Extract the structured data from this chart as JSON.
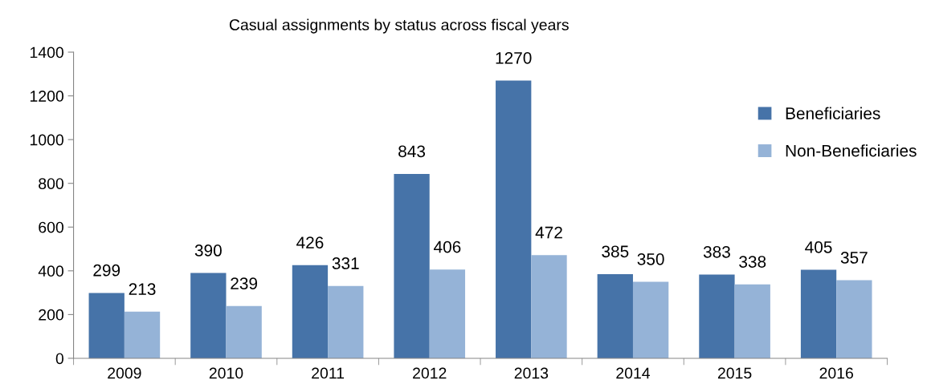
{
  "chart_data": {
    "type": "bar",
    "title": "Casual assignments by status across fiscal years",
    "categories": [
      "2009",
      "2010",
      "2011",
      "2012",
      "2013",
      "2014",
      "2015",
      "2016"
    ],
    "series": [
      {
        "name": "Beneficiaries",
        "color": "#4673a8",
        "values": [
          299,
          390,
          426,
          843,
          1270,
          385,
          383,
          405
        ]
      },
      {
        "name": "Non-Beneficiaries",
        "color": "#95b3d7",
        "values": [
          213,
          239,
          331,
          406,
          472,
          350,
          338,
          357
        ]
      }
    ],
    "ylim": [
      0,
      1400
    ],
    "yticks": [
      0,
      200,
      400,
      600,
      800,
      1000,
      1200,
      1400
    ],
    "data_labels": true,
    "grid": false,
    "legend": "top right"
  }
}
